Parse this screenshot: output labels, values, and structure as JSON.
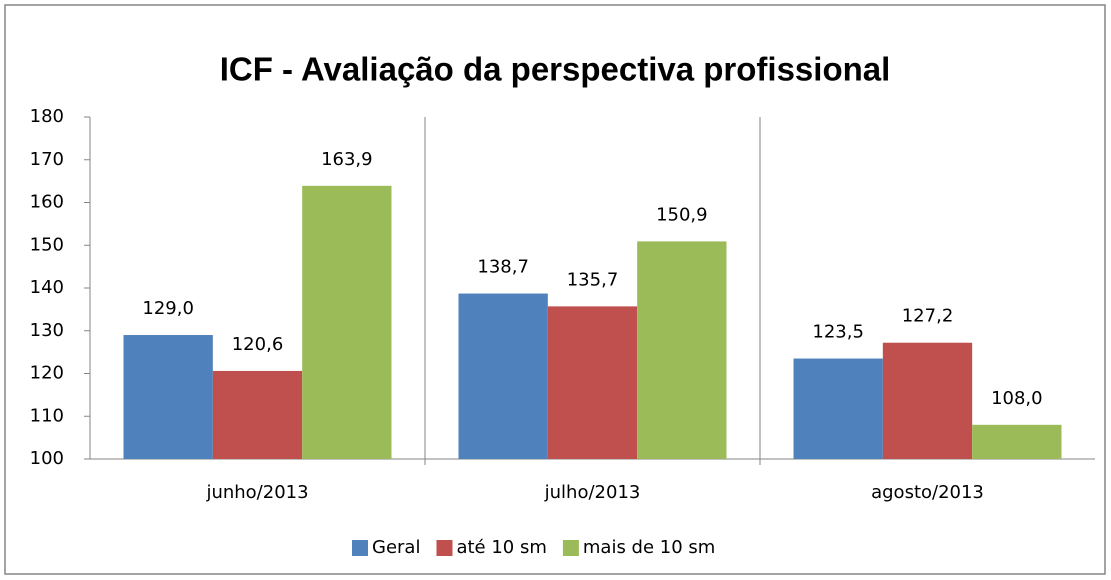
{
  "chart_data": {
    "type": "bar",
    "title": "ICF - Avaliação da perspectiva profissional",
    "categories": [
      "junho/2013",
      "julho/2013",
      "agosto/2013"
    ],
    "series": [
      {
        "name": "Geral",
        "color": "#4f81bd",
        "values": [
          129.0,
          138.7,
          123.5
        ],
        "value_labels": [
          "129,0",
          "138,7",
          "123,5"
        ]
      },
      {
        "name": "até 10 sm",
        "color": "#c0504d",
        "values": [
          120.6,
          135.7,
          127.2
        ],
        "value_labels": [
          "120,6",
          "135,7",
          "127,2"
        ]
      },
      {
        "name": "mais de 10 sm",
        "color": "#9bbb59",
        "values": [
          163.9,
          150.9,
          108.0
        ],
        "value_labels": [
          "163,9",
          "150,9",
          "108,0"
        ]
      }
    ],
    "ylim": [
      100,
      180
    ],
    "yticks": [
      100,
      110,
      120,
      130,
      140,
      150,
      160,
      170,
      180
    ],
    "grid": false,
    "legend": "bottom"
  }
}
